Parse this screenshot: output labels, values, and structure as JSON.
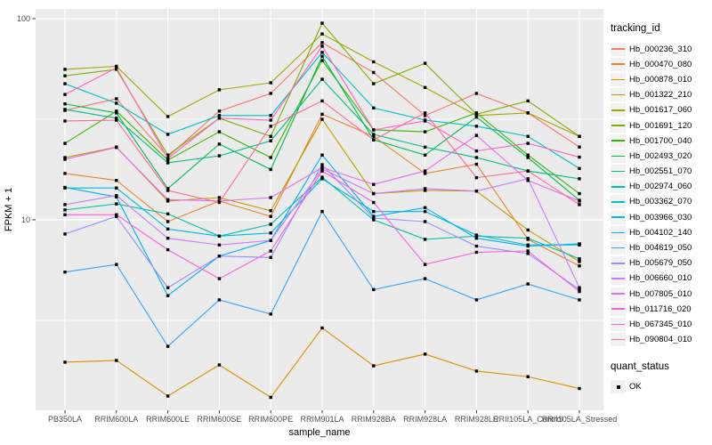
{
  "style": {
    "panel_bg": "#EBEBEB",
    "grid_color": "#FFFFFF",
    "axis_text_color": "#4D4D4D",
    "axis_title_color": "#000000",
    "point_color": "#000000",
    "legend_key_bg": "#F2F2F2"
  },
  "chart_data": {
    "type": "line",
    "title": "",
    "xlabel": "sample_name",
    "ylabel": "FPKM + 1",
    "y_scale": "log10",
    "ylim": [
      1.13,
      112
    ],
    "y_ticks": [
      10,
      100
    ],
    "y_minor_ticks": [
      3.162,
      31.62
    ],
    "grid": true,
    "legend_position": "right",
    "point_shape": "filled-square",
    "legend": {
      "color_title": "tracking_id",
      "shape_title": "quant_status",
      "shape_label": "OK"
    },
    "categories": [
      "PB350LA",
      "RRIM600LA",
      "RRIM600LE",
      "RRIM600SE",
      "RRIM600PE",
      "RRIM901LA",
      "RRIM928BA",
      "RRIM928LA",
      "RRIM928LE",
      "RRII105LA_Control",
      "RRII105LA_Stressed"
    ],
    "series": [
      {
        "name": "Hb_000236_310",
        "color": "#F8766D",
        "values": [
          35,
          40,
          20.6,
          34.7,
          42.5,
          76,
          54,
          33,
          42.5,
          34,
          23
        ]
      },
      {
        "name": "Hb_000470_080",
        "color": "#EA8331",
        "values": [
          17,
          15.7,
          9.8,
          12.4,
          10.4,
          33.5,
          26,
          17,
          18.9,
          8,
          5.9
        ]
      },
      {
        "name": "Hb_000878_010",
        "color": "#D89000",
        "values": [
          1.96,
          2.0,
          1.33,
          1.9,
          1.31,
          2.9,
          1.88,
          2.15,
          1.77,
          1.66,
          1.45
        ]
      },
      {
        "name": "Hb_001322_210",
        "color": "#C09B00",
        "values": [
          20.4,
          23,
          12.4,
          12.9,
          11.1,
          31.6,
          13.5,
          14,
          13.9,
          8.9,
          6.2
        ]
      },
      {
        "name": "Hb_001617_060",
        "color": "#A3A500",
        "values": [
          56,
          58,
          32.6,
          44.3,
          48,
          84,
          61,
          45.5,
          33,
          34,
          26
        ]
      },
      {
        "name": "Hb_001691_120",
        "color": "#7CAE00",
        "values": [
          52,
          56,
          21,
          32,
          26,
          95,
          47.5,
          60,
          33.5,
          39,
          26
        ]
      },
      {
        "name": "Hb_001700_040",
        "color": "#39B600",
        "values": [
          24,
          34.7,
          19.8,
          27.4,
          20.4,
          62,
          28,
          27.4,
          34,
          21,
          13.5
        ]
      },
      {
        "name": "Hb_002493_020",
        "color": "#00BB4E",
        "values": [
          37.7,
          34,
          14.3,
          23.8,
          17.8,
          65,
          25,
          21,
          32.4,
          20.4,
          12.5
        ]
      },
      {
        "name": "Hb_002551_070",
        "color": "#00BF7D",
        "values": [
          35.4,
          32,
          19.2,
          20.8,
          24.7,
          50,
          26.6,
          23,
          20.4,
          17.5,
          16
        ]
      },
      {
        "name": "Hb_002974_060",
        "color": "#00C1A3",
        "values": [
          11.2,
          12,
          10.7,
          8.3,
          9.5,
          16.3,
          10,
          8,
          8.3,
          8.1,
          6.4
        ]
      },
      {
        "name": "Hb_003362_070",
        "color": "#00BFC4",
        "values": [
          47.5,
          38,
          26.6,
          33,
          33,
          68,
          36,
          31.3,
          29.2,
          26,
          18
        ]
      },
      {
        "name": "Hb_003966_030",
        "color": "#00BAE0",
        "values": [
          14.4,
          14.4,
          9,
          8.3,
          8.6,
          16,
          11,
          11,
          8.4,
          7.5,
          7.5
        ]
      },
      {
        "name": "Hb_004102_140",
        "color": "#00B0F6",
        "values": [
          14.5,
          13,
          4.2,
          6.6,
          7.9,
          21,
          10.4,
          11.5,
          8.1,
          7.4,
          7.6
        ]
      },
      {
        "name": "Hb_004619_050",
        "color": "#35A2FF",
        "values": [
          5.5,
          6.0,
          2.35,
          4.0,
          3.4,
          11,
          4.5,
          5.1,
          4.0,
          4.8,
          4.0
        ]
      },
      {
        "name": "Hb_005679_050",
        "color": "#9590FF",
        "values": [
          8.5,
          10.4,
          4.6,
          6.6,
          6.5,
          18.8,
          10.2,
          9.8,
          7.4,
          6.8,
          4.5
        ]
      },
      {
        "name": "Hb_006660_010",
        "color": "#C77CFF",
        "values": [
          11.9,
          13.2,
          8.1,
          7.5,
          7.9,
          17.9,
          13.5,
          14.3,
          13.9,
          16,
          4.6
        ]
      },
      {
        "name": "Hb_007805_010",
        "color": "#E76BF3",
        "values": [
          20,
          22.9,
          12.6,
          12.4,
          12.9,
          18.2,
          15,
          17.5,
          26.3,
          15.7,
          12.4
        ]
      },
      {
        "name": "Hb_011716_020",
        "color": "#FA62DB",
        "values": [
          10.6,
          10.6,
          7.1,
          5.1,
          7,
          17.5,
          12.2,
          6,
          6.9,
          7,
          4.4
        ]
      },
      {
        "name": "Hb_067345_010",
        "color": "#FF62BC",
        "values": [
          42,
          57,
          20.2,
          32,
          31.3,
          73,
          28,
          31,
          22,
          24,
          20.5
        ]
      },
      {
        "name": "Hb_090804_010",
        "color": "#FF6A98",
        "values": [
          31,
          31.3,
          14,
          12.2,
          29.2,
          39,
          25,
          34,
          16.2,
          17.5,
          11.9
        ]
      }
    ]
  }
}
